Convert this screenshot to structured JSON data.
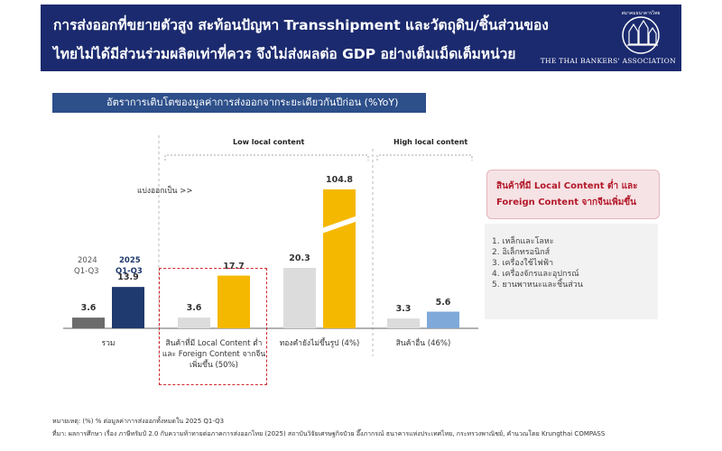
{
  "header": {
    "line1": "การส่งออกที่ขยายตัวสูง สะท้อนปัญหา Transshipment และวัตถุดิบ/ชิ้นส่วนของ",
    "line2": "ไทยไม่ได้มีส่วนร่วมผลิตเท่าที่ควร จึงไม่ส่งผลต่อ GDP อย่างเต็มเม็ดเต็มหน่วย",
    "logo_text": "THE THAI BANKERS' ASSOCIATION",
    "logo_top_text": "สมาคมธนาคารไทย"
  },
  "subtitle": "อัตราการเติบโตของมูลค่าการส่งออกจากระยะเดียวกันปีก่อน (%YoY)",
  "labels": {
    "low_local": "Low local content",
    "high_local": "High local content",
    "split": "แบ่งออกเป็น >>",
    "year_2024": "2024",
    "q_2024": "Q1-Q3",
    "year_2025": "2025",
    "q_2025": "Q1-Q3"
  },
  "chart_data": {
    "type": "bar",
    "title": "อัตราการเติบโตของมูลค่าการส่งออกจากระยะเดียวกันปีก่อน (%YoY)",
    "categories": [
      "รวม",
      "สินค้าที่มี Local Content ต่ำ และ Foreign Content จากจีนเพิ่มขึ้น (50%)",
      "ทองคำยังไม่ขึ้นรูป (4%)",
      "สินค้าอื่น (46%)"
    ],
    "category_lines": [
      [
        "รวม"
      ],
      [
        "สินค้าที่มี Local Content ต่ำ",
        "และ Foreign Content จากจีน",
        "เพิ่มขึ้น (50%)"
      ],
      [
        "ทองคำยังไม่ขึ้นรูป (4%)"
      ],
      [
        "สินค้าอื่น (46%)"
      ]
    ],
    "series": [
      {
        "name": "2024 Q1-Q3",
        "values": [
          3.6,
          3.6,
          20.3,
          3.3
        ]
      },
      {
        "name": "2025 Q1-Q3",
        "values": [
          13.9,
          17.7,
          104.8,
          5.6
        ]
      }
    ],
    "value_labels": [
      [
        "3.6",
        "13.9"
      ],
      [
        "3.6",
        "17.7"
      ],
      [
        "20.3",
        "104.8"
      ],
      [
        "3.3",
        "5.6"
      ]
    ],
    "axis_break": true,
    "colors": {
      "total_2024": "#6b6b6b",
      "total_2025": "#1f3a6e",
      "low_2024": "#dcdcdc",
      "low_2025": "#f5b800",
      "other_2025": "#7fa9d9"
    }
  },
  "legend": {
    "line1": "สินค้าที่มี Local Content ต่ำ และ",
    "line2": "Foreign Content จากจีนเพิ่มขึ้น"
  },
  "list_items": [
    "1. เหล็กและโลหะ",
    "2. อิเล็กทรอนิกส์",
    "3. เครื่องใช้ไฟฟ้า",
    "4. เครื่องจักรและอุปกรณ์",
    "5. ยานพาหนะและชิ้นส่วน"
  ],
  "notes": {
    "note": "หมายเหตุ: (%) % ต่อมูลค่าการส่งออกทั้งหมดใน 2025 Q1-Q3",
    "source": "ที่มา: ผลการศึกษา เรื่อง ภาษีทรัมป์ 2.0 กับความท้าทายต่อภาคการส่งออกไทย (2025) สถาบันวิจัยเศรษฐกิจป๋วย อึ๊งภากรณ์ ธนาคารแห่งประเทศไทย, กระทรวงพาณิชย์, คำนวณโดย Krungthai COMPASS"
  }
}
